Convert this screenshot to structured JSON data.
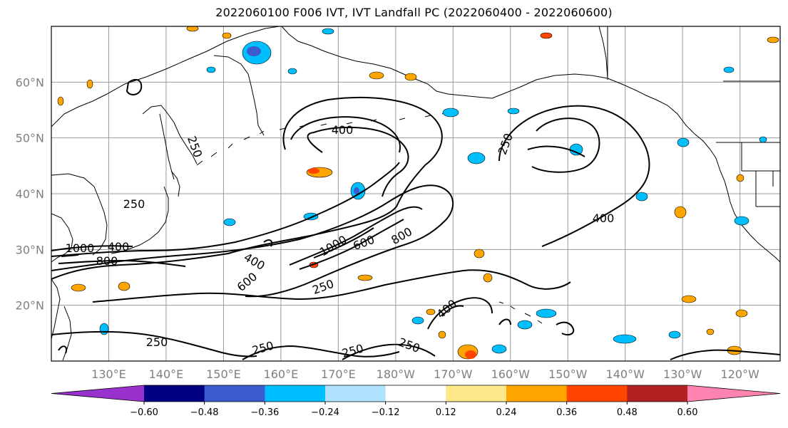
{
  "title": "2022060100 F006 IVT, IVT Landfall PC (2022060400 - 2022060600)",
  "map": {
    "lat_labels": [
      {
        "text": "60°N",
        "lat": 60
      },
      {
        "text": "50°N",
        "lat": 50
      },
      {
        "text": "40°N",
        "lat": 40
      },
      {
        "text": "30°N",
        "lat": 30
      },
      {
        "text": "20°N",
        "lat": 20
      }
    ],
    "lon_labels": [
      {
        "text": "130°E",
        "lon": 130
      },
      {
        "text": "140°E",
        "lon": 140
      },
      {
        "text": "150°E",
        "lon": 150
      },
      {
        "text": "160°E",
        "lon": 160
      },
      {
        "text": "170°E",
        "lon": 170
      },
      {
        "text": "180°W",
        "lon": 180
      },
      {
        "text": "170°W",
        "lon": 190
      },
      {
        "text": "160°W",
        "lon": 200
      },
      {
        "text": "150°W",
        "lon": 210
      },
      {
        "text": "140°W",
        "lon": 220
      },
      {
        "text": "130°W",
        "lon": 230
      },
      {
        "text": "120°W",
        "lon": 240
      }
    ],
    "extent": {
      "lon_min": 120,
      "lon_max": 247,
      "lat_min": 10,
      "lat_max": 70
    },
    "contour_labels": [
      "400",
      "250",
      "250",
      "250",
      "400",
      "400",
      "600",
      "1000",
      "800",
      "1000",
      "600",
      "800",
      "250",
      "250",
      "250",
      "250",
      "400",
      "250",
      "400"
    ],
    "colors": {
      "coast": "#000000",
      "grid": "#999999",
      "contour": "#000000"
    }
  },
  "colorbar": {
    "colors": [
      "#9932cc",
      "#000080",
      "#3a5bcd",
      "#00bfff",
      "#b0e2ff",
      "#ffffff",
      "#fde98a",
      "#ffa500",
      "#ff4500",
      "#b22222",
      "#ff83b0"
    ],
    "ticks": [
      "−0.60",
      "−0.48",
      "−0.36",
      "−0.24",
      "−0.12",
      "0.12",
      "0.24",
      "0.36",
      "0.48",
      "0.60"
    ]
  }
}
